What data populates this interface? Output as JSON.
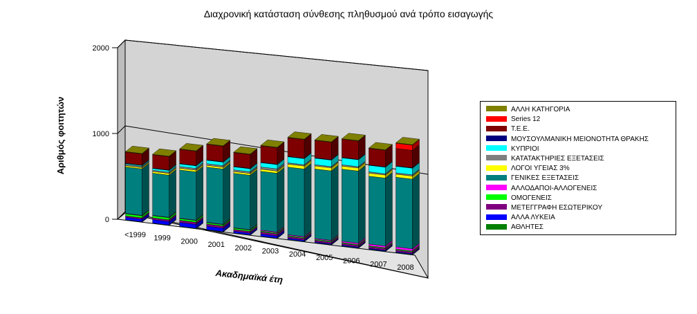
{
  "chart_data": {
    "type": "bar",
    "stacked": true,
    "three_d": true,
    "title": "Διαχρονική κατάσταση σύνθεσης πληθυσμού ανά τρόπο εισαγωγής",
    "xlabel": "Ακαδημαϊκά έτη",
    "ylabel": "Αριθμός φοιτητών",
    "ylim": [
      0,
      2000
    ],
    "yticks": [
      "0",
      "1000",
      "2000"
    ],
    "grid": true,
    "legend_position": "right",
    "categories": [
      "<1999",
      "1999",
      "2000",
      "2001",
      "2002",
      "2003",
      "2004",
      "2005",
      "2006",
      "2007",
      "2008"
    ],
    "series": [
      {
        "name": "ΑΘΛΗΤΕΣ",
        "color": "#007f00",
        "values": [
          5,
          5,
          5,
          5,
          5,
          5,
          5,
          5,
          5,
          5,
          5
        ]
      },
      {
        "name": "ΑΛΛΑ ΛΥΚΕΙΑ",
        "color": "#0000ff",
        "values": [
          30,
          40,
          45,
          40,
          20,
          25,
          15,
          10,
          10,
          10,
          10
        ]
      },
      {
        "name": "ΜΕΤΕΓΓΡΑΦΗ ΕΣΩΤΕΡΙΚΟΥ",
        "color": "#7f007f",
        "values": [
          15,
          20,
          25,
          25,
          20,
          25,
          20,
          20,
          20,
          20,
          20
        ]
      },
      {
        "name": "ΟΜΟΓΕΝΕΙΣ",
        "color": "#00ff00",
        "values": [
          25,
          25,
          20,
          15,
          15,
          10,
          10,
          10,
          10,
          10,
          10
        ]
      },
      {
        "name": "ΑΛΛΟΔΑΠΟΙ-ΑΛΛΟΓΕΝΕΙΣ",
        "color": "#ff00ff",
        "values": [
          5,
          5,
          5,
          5,
          5,
          10,
          10,
          10,
          15,
          20,
          25
        ]
      },
      {
        "name": "ΓΕΝΙΚΕΣ ΕΞΕΤΑΣΕΙΣ",
        "color": "#007f7f",
        "values": [
          540,
          490,
          560,
          640,
          630,
          680,
          780,
          800,
          830,
          780,
          800
        ]
      },
      {
        "name": "ΛΟΓΟΙ ΥΓΕΙΑΣ 3%",
        "color": "#ffff00",
        "values": [
          15,
          20,
          20,
          20,
          20,
          25,
          35,
          35,
          35,
          35,
          35
        ]
      },
      {
        "name": "ΚΑΤΑΤΑΚΤΗΡΙΕΣ ΕΞΕΤΑΣΕΙΣ",
        "color": "#7f7f7f",
        "values": [
          15,
          15,
          20,
          20,
          20,
          25,
          15,
          15,
          15,
          15,
          15
        ]
      },
      {
        "name": "ΚΥΠΡΙΟΙ",
        "color": "#00ffff",
        "values": [
          10,
          20,
          30,
          40,
          35,
          50,
          70,
          75,
          80,
          75,
          75
        ]
      },
      {
        "name": "ΜΟΥΣΟΥΛΜΑΝΙΚΗ ΜΕΙΟΝΟΤΗΤΑ ΘΡΑΚΗΣ",
        "color": "#00007f",
        "values": [
          5,
          5,
          5,
          5,
          5,
          5,
          5,
          5,
          5,
          5,
          5
        ]
      },
      {
        "name": "Τ.Ε.Ε.",
        "color": "#7f0000",
        "values": [
          130,
          155,
          165,
          180,
          160,
          190,
          215,
          200,
          210,
          190,
          200
        ]
      },
      {
        "name": "Series 12",
        "color": "#ff0000",
        "values": [
          0,
          0,
          0,
          0,
          0,
          0,
          0,
          0,
          0,
          0,
          60
        ]
      },
      {
        "name": "ΑΛΛΗ ΚΑΤΗΓΟΡΙΑ",
        "color": "#7f7f00",
        "values": [
          5,
          5,
          5,
          5,
          5,
          5,
          5,
          5,
          5,
          5,
          5
        ]
      }
    ],
    "legend_order": [
      "ΑΛΛΗ ΚΑΤΗΓΟΡΙΑ",
      "Series 12",
      "Τ.Ε.Ε.",
      "ΜΟΥΣΟΥΛΜΑΝΙΚΗ ΜΕΙΟΝΟΤΗΤΑ ΘΡΑΚΗΣ",
      "ΚΥΠΡΙΟΙ",
      "ΚΑΤΑΤΑΚΤΗΡΙΕΣ ΕΞΕΤΑΣΕΙΣ",
      "ΛΟΓΟΙ ΥΓΕΙΑΣ 3%",
      "ΓΕΝΙΚΕΣ ΕΞΕΤΑΣΕΙΣ",
      "ΑΛΛΟΔΑΠΟΙ-ΑΛΛΟΓΕΝΕΙΣ",
      "ΟΜΟΓΕΝΕΙΣ",
      "ΜΕΤΕΓΓΡΑΦΗ ΕΣΩΤΕΡΙΚΟΥ",
      "ΑΛΛΑ ΛΥΚΕΙΑ",
      "ΑΘΛΗΤΕΣ"
    ]
  }
}
